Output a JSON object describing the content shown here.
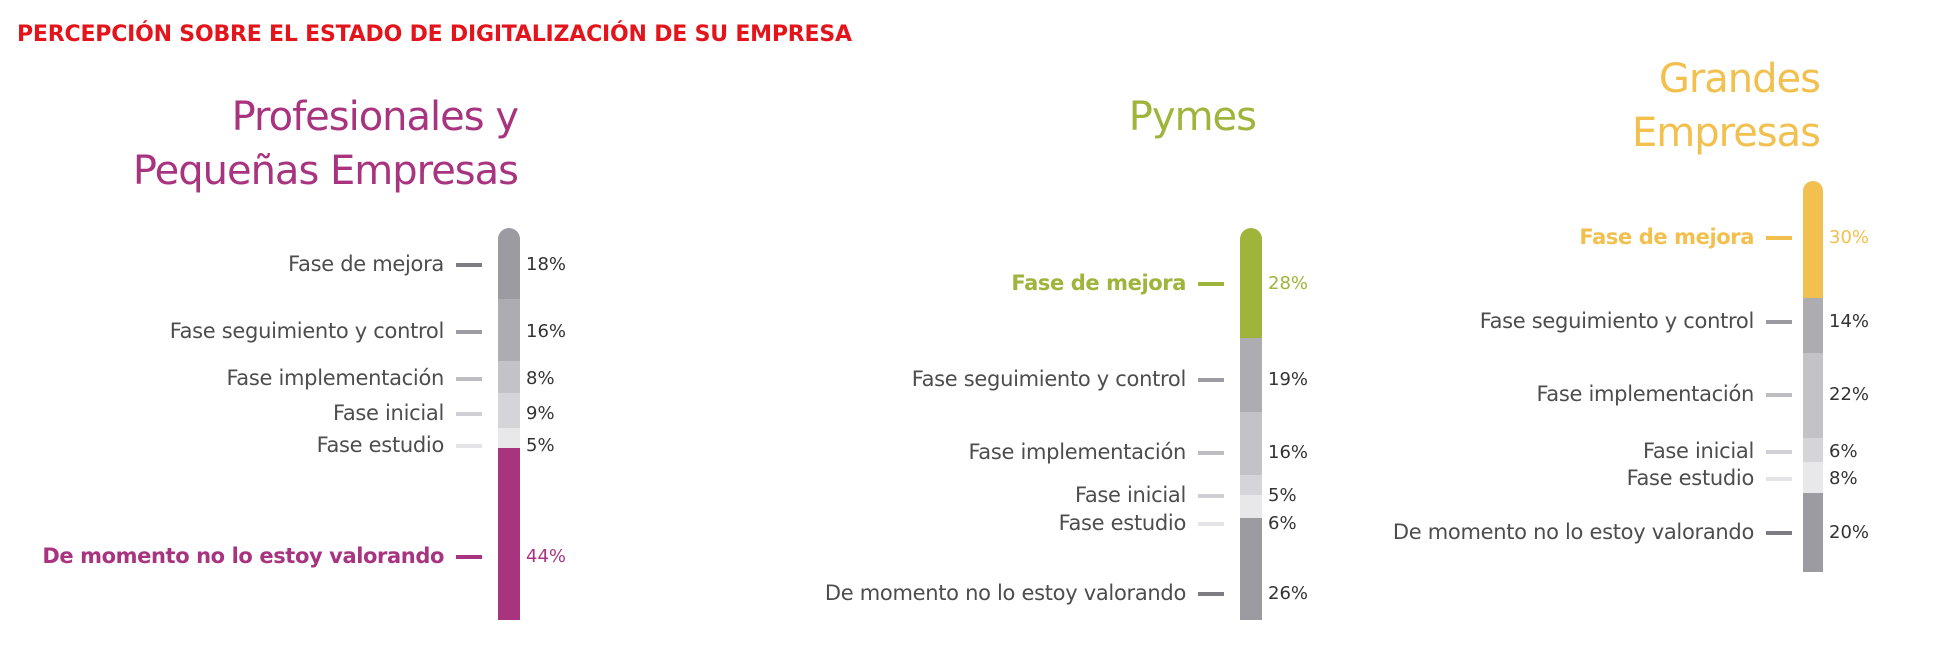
{
  "title": "PERCEPCIÓN SOBRE EL ESTADO DE DIGITALIZACIÓN DE SU EMPRESA",
  "colors": {
    "title": "#e3141b",
    "profesionales": "#a8347f",
    "pymes": "#9fb43b",
    "grandes": "#f1c04e",
    "fase_de_mejora": "#9b9ba1",
    "fase_seguimiento_y_control": "#acacb1",
    "fase_implementacion": "#c3c3c7",
    "fase_inicial": "#d5d5d9",
    "fase_estudio": "#e8e8ea",
    "de_momento": "#9b9ba1"
  },
  "chart_data": [
    {
      "type": "bar",
      "stacked": true,
      "title": "Profesionales y Pequeñas Empresas",
      "title_lines": [
        "Profesionales y",
        "Pequeñas Empresas"
      ],
      "highlight_color": "#a8347f",
      "categories": [
        "Fase de mejora",
        "Fase seguimiento y control",
        "Fase implementación",
        "Fase inicial",
        "Fase estudio",
        "De momento no lo estoy valorando"
      ],
      "values": [
        18,
        16,
        8,
        9,
        5,
        44
      ],
      "value_labels": [
        "18%",
        "16%",
        "8%",
        "9%",
        "5%",
        "44%"
      ],
      "highlighted": [
        "De momento no lo estoy valorando"
      ]
    },
    {
      "type": "bar",
      "stacked": true,
      "title": "Pymes",
      "title_lines": [
        "Pymes"
      ],
      "highlight_color": "#9fb43b",
      "categories": [
        "Fase de mejora",
        "Fase seguimiento y control",
        "Fase implementación",
        "Fase inicial",
        "Fase estudio",
        "De momento no lo estoy valorando"
      ],
      "values": [
        28,
        19,
        16,
        5,
        6,
        26
      ],
      "value_labels": [
        "28%",
        "19%",
        "16%",
        "5%",
        "6%",
        "26%"
      ],
      "highlighted": [
        "Fase de mejora"
      ]
    },
    {
      "type": "bar",
      "stacked": true,
      "title": "Grandes Empresas",
      "title_lines": [
        "Grandes",
        "Empresas"
      ],
      "highlight_color": "#f1c04e",
      "categories": [
        "Fase de mejora",
        "Fase seguimiento y control",
        "Fase implementación",
        "Fase inicial",
        "Fase estudio",
        "De momento no lo estoy valorando"
      ],
      "values": [
        30,
        14,
        22,
        6,
        8,
        20
      ],
      "value_labels": [
        "30%",
        "14%",
        "22%",
        "6%",
        "8%",
        "20%"
      ],
      "highlighted": [
        "Fase de mejora"
      ]
    }
  ]
}
